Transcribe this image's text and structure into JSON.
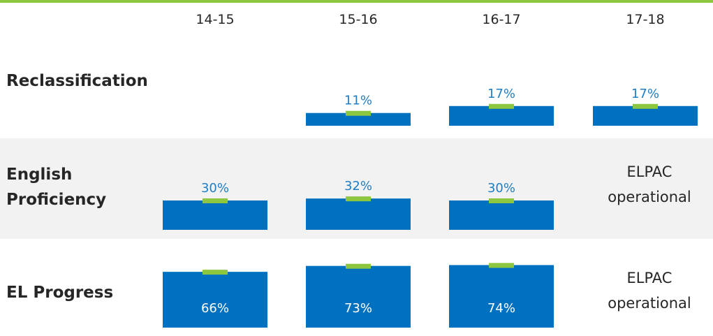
{
  "chart_data": {
    "type": "bar",
    "title": "",
    "xlabel": "",
    "ylabel": "",
    "grid": false,
    "categories": [
      "14-15",
      "15-16",
      "16-17",
      "17-18"
    ],
    "value_suffix": "%",
    "series": [
      {
        "name": "Reclassification",
        "values": [
          null,
          11,
          17,
          17
        ]
      },
      {
        "name": "English Proficiency",
        "values": [
          30,
          32,
          30,
          null
        ]
      },
      {
        "name": "EL Progress",
        "values": [
          66,
          73,
          74,
          null
        ]
      }
    ],
    "row_labels": [
      [
        "Reclassification"
      ],
      [
        "English",
        "Proficiency"
      ],
      [
        "EL Progress"
      ]
    ],
    "missing_note": [
      "ELPAC",
      "operational"
    ]
  },
  "colors": {
    "bar": "#0070c0",
    "marker": "#8dc63f",
    "label_blue": "#1f7dc4",
    "label_white": "#ffffff",
    "band": "#f2f2f2",
    "text": "#262626",
    "top_rule": "#8dc63f"
  }
}
